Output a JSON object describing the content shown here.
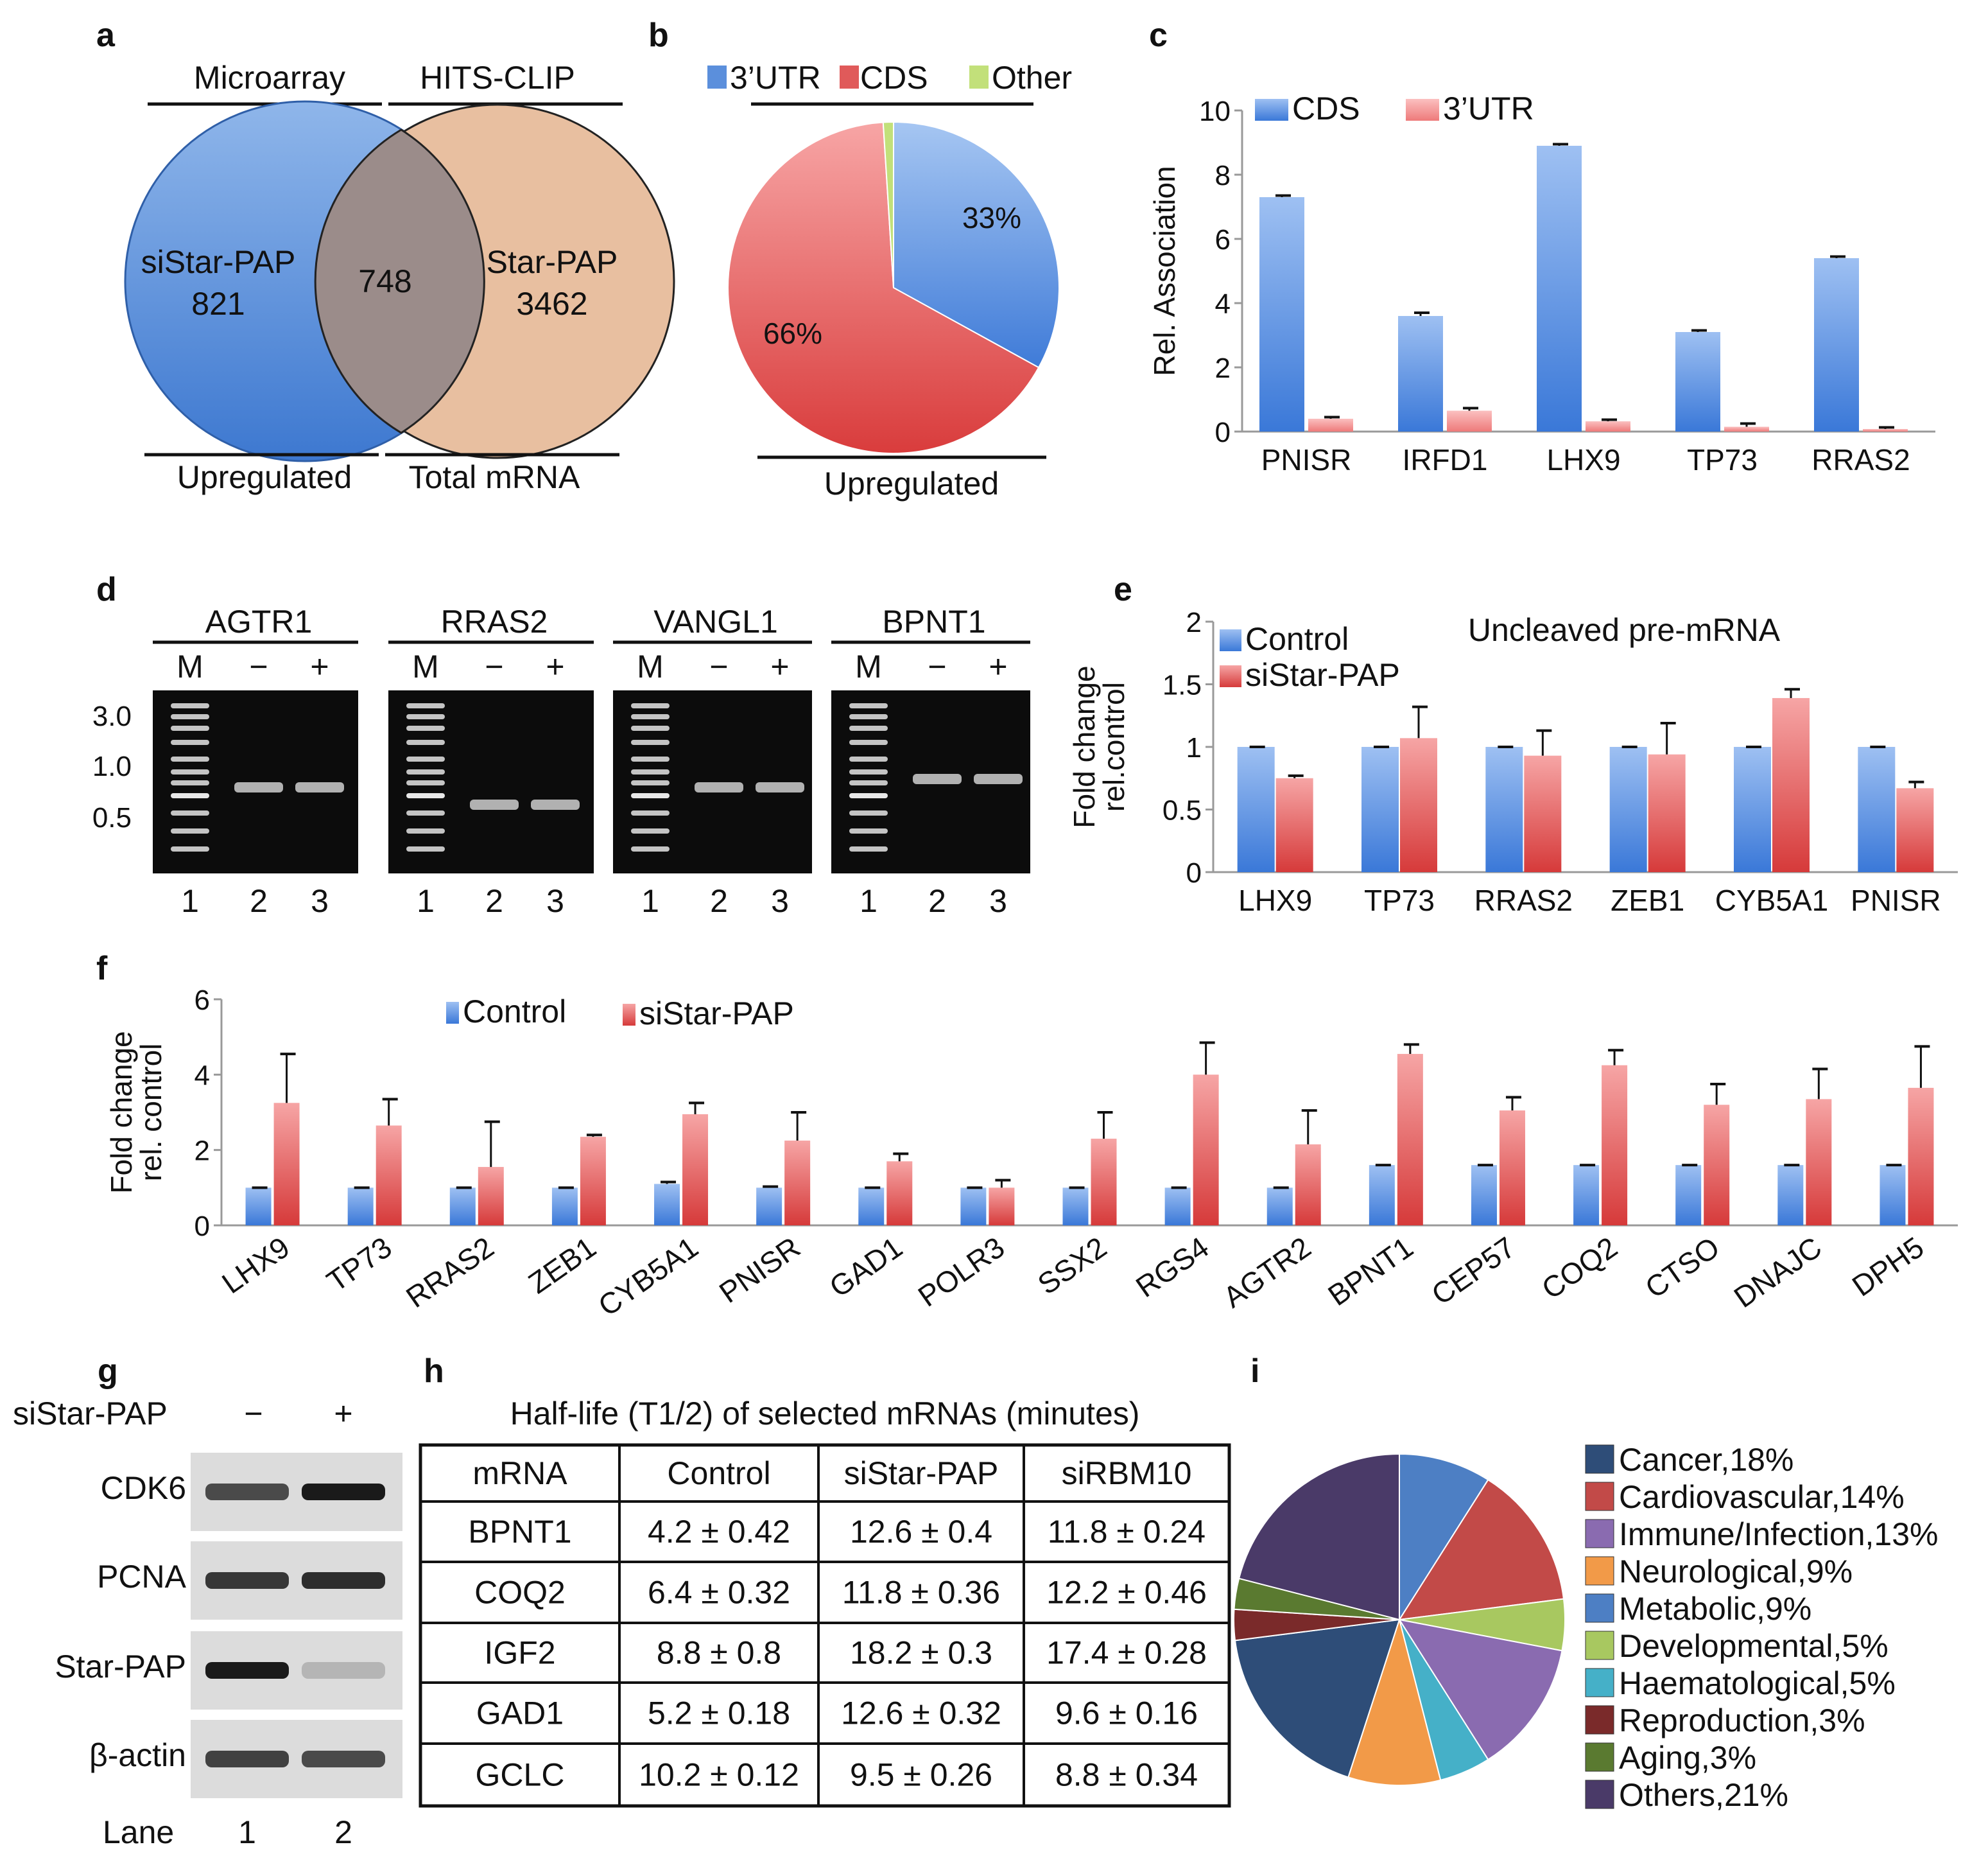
{
  "panels": {
    "a": {
      "label": "a",
      "top_left": "Microarray",
      "top_right": "HITS-CLIP",
      "bottom_left": "Upregulated",
      "bottom_right": "Total mRNA",
      "left_name": "siStar-PAP",
      "left_count": "821",
      "overlap_count": "748",
      "right_name": "Star-PAP",
      "right_count": "3462",
      "colors": {
        "left": "#4a85d6",
        "right": "#e8bfa0"
      }
    },
    "b": {
      "label": "b",
      "legend": [
        "3’UTR",
        "CDS",
        "Other"
      ],
      "bottom": "Upregulated",
      "slice_labels": [
        "33%",
        "66%"
      ]
    },
    "c": {
      "label": "c"
    },
    "d": {
      "label": "d",
      "gels": [
        {
          "title": "AGTR1",
          "marker": "M",
          "minus": "−",
          "plus": "+",
          "lanes": [
            "1",
            "2",
            "3"
          ]
        },
        {
          "title": "RRAS2",
          "marker": "M",
          "minus": "−",
          "plus": "+",
          "lanes": [
            "1",
            "2",
            "3"
          ]
        },
        {
          "title": "VANGL1",
          "marker": "M",
          "minus": "−",
          "plus": "+",
          "lanes": [
            "1",
            "2",
            "3"
          ]
        },
        {
          "title": "BPNT1",
          "marker": "M",
          "minus": "−",
          "plus": "+",
          "lanes": [
            "1",
            "2",
            "3"
          ]
        }
      ],
      "size_labels": [
        "3.0",
        "1.0",
        "0.5"
      ]
    },
    "e": {
      "label": "e",
      "title": "Uncleaved pre-mRNA"
    },
    "f": {
      "label": "f"
    },
    "g": {
      "label": "g",
      "treatment": "siStar-PAP",
      "minus": "−",
      "plus": "+",
      "rows": [
        "CDK6",
        "PCNA",
        "Star-PAP",
        "β-actin"
      ],
      "lane_label": "Lane",
      "lanes": [
        "1",
        "2"
      ]
    },
    "h": {
      "label": "h",
      "title": "Half-life (T1/2) of selected mRNAs (minutes)",
      "header": [
        "mRNA",
        "Control",
        "siStar-PAP",
        "siRBM10"
      ],
      "rows": [
        [
          "BPNT1",
          "4.2 ± 0.42",
          "12.6 ± 0.4",
          "11.8 ± 0.24"
        ],
        [
          "COQ2",
          "6.4 ± 0.32",
          "11.8 ± 0.36",
          "12.2 ± 0.46"
        ],
        [
          "IGF2",
          "8.8 ± 0.8",
          "18.2 ± 0.3",
          "17.4 ± 0.28"
        ],
        [
          "GAD1",
          "5.2 ± 0.18",
          "12.6 ± 0.32",
          "9.6 ± 0.16"
        ],
        [
          "GCLC",
          "10.2 ± 0.12",
          "9.5 ± 0.26",
          "8.8 ± 0.34"
        ]
      ]
    },
    "i": {
      "label": "i"
    }
  },
  "chart_data": [
    {
      "id": "b",
      "type": "pie",
      "labels": [
        "3’UTR",
        "CDS",
        "Other"
      ],
      "values": [
        33,
        66,
        1
      ],
      "colors": [
        "#5b8fdc",
        "#e05a5a",
        "#c2e07a"
      ]
    },
    {
      "id": "c",
      "type": "bar",
      "categories": [
        "PNISR",
        "IRFD1",
        "LHX9",
        "TP73",
        "RRAS2"
      ],
      "series": [
        {
          "name": "CDS",
          "values": [
            7.3,
            3.6,
            8.9,
            3.1,
            5.4
          ],
          "errors": [
            0.05,
            0.1,
            0.05,
            0.05,
            0.05
          ]
        },
        {
          "name": "3’UTR",
          "values": [
            0.4,
            0.65,
            0.32,
            0.15,
            0.08
          ],
          "errors": [
            0.05,
            0.08,
            0.05,
            0.1,
            0.05
          ]
        }
      ],
      "ylabel": "Rel. Association",
      "xlabel": "",
      "ylim": [
        0,
        10
      ],
      "yticks": [
        0,
        2,
        4,
        6,
        8,
        10
      ],
      "colors": [
        "#5b8fdc",
        "#ef8a8a"
      ]
    },
    {
      "id": "e",
      "type": "bar",
      "title": "Uncleaved pre-mRNA",
      "categories": [
        "LHX9",
        "TP73",
        "RRAS2",
        "ZEB1",
        "CYB5A1",
        "PNISR"
      ],
      "series": [
        {
          "name": "Control",
          "values": [
            1,
            1,
            1,
            1,
            1,
            1
          ],
          "errors": [
            0,
            0,
            0,
            0,
            0,
            0
          ]
        },
        {
          "name": "siStar-PAP",
          "values": [
            0.75,
            1.07,
            0.93,
            0.94,
            1.39,
            0.67
          ],
          "errors": [
            0.02,
            0.25,
            0.2,
            0.25,
            0.07,
            0.05
          ]
        }
      ],
      "ylabel": "Fold change rel.control",
      "ylim": [
        0,
        2
      ],
      "yticks": [
        "0",
        "0.5",
        "1",
        "1.5",
        "2"
      ],
      "colors": [
        "#5b8fdc",
        "#e05a5a"
      ]
    },
    {
      "id": "f",
      "type": "bar",
      "categories": [
        "LHX9",
        "TP73",
        "RRAS2",
        "ZEB1",
        "CYB5A1",
        "PNISR",
        "GAD1",
        "POLR3",
        "SSX2",
        "RGS4",
        "AGTR2",
        "BPNT1",
        "CEP57",
        "COQ2",
        "CTSO",
        "DNAJC",
        "DPH5"
      ],
      "series": [
        {
          "name": "Control",
          "values": [
            1,
            1,
            1,
            1,
            1.1,
            1,
            1,
            1,
            1,
            1,
            1,
            1.6,
            1.6,
            1.6,
            1.6,
            1.6,
            1.6
          ],
          "errors": [
            0,
            0,
            0,
            0,
            0.05,
            0.03,
            0,
            0,
            0,
            0,
            0,
            0,
            0,
            0,
            0,
            0,
            0
          ]
        },
        {
          "name": "siStar-PAP",
          "values": [
            3.25,
            2.65,
            1.55,
            2.35,
            2.95,
            2.25,
            1.7,
            1.0,
            2.3,
            4.0,
            2.15,
            4.55,
            3.05,
            4.25,
            3.2,
            3.35,
            3.65
          ],
          "errors": [
            1.3,
            0.7,
            1.2,
            0.05,
            0.3,
            0.75,
            0.2,
            0.2,
            0.7,
            0.85,
            0.9,
            0.25,
            0.35,
            0.4,
            0.55,
            0.8,
            1.1
          ]
        }
      ],
      "ylabel": "Fold change rel. control",
      "ylim": [
        0,
        6
      ],
      "yticks": [
        0,
        2,
        4,
        6
      ],
      "colors": [
        "#5b8fdc",
        "#e05a5a"
      ]
    },
    {
      "id": "i",
      "type": "pie",
      "labels": [
        "Cancer,18%",
        "Cardiovascular,14%",
        "Immune/Infection,13%",
        "Neurological,9%",
        "Metabolic,9%",
        "Developmental,5%",
        "Haematological,5%",
        "Reproduction,3%",
        "Aging,3%",
        "Others,21%"
      ],
      "pie_order": [
        "Metabolic",
        "Cardiovascular",
        "Developmental",
        "Immune/Infection",
        "Haematological",
        "Neurological",
        "Cancer",
        "Reproduction",
        "Aging",
        "Others"
      ],
      "pie_values": [
        9,
        14,
        5,
        13,
        5,
        9,
        18,
        3,
        3,
        21
      ],
      "colors": {
        "Cancer": "#2e4d78",
        "Cardiovascular": "#c24a48",
        "Immune/Infection": "#8a6bb0",
        "Neurological": "#f29a48",
        "Metabolic": "#4d7fc4",
        "Developmental": "#a8c860",
        "Haematological": "#45b0c8",
        "Reproduction": "#7a2a2a",
        "Aging": "#5a7a30",
        "Others": "#4a3a68"
      }
    }
  ]
}
